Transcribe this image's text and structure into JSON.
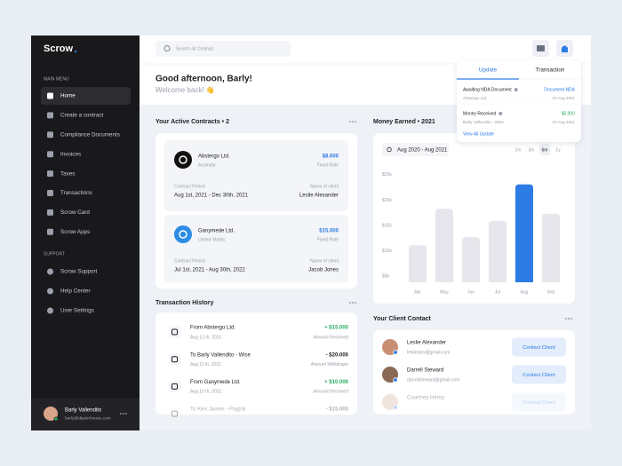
{
  "sidebar": {
    "brand": "Scrow",
    "main_menu_label": "MAIN MENU",
    "main_menu": [
      "Home",
      "Create a contract",
      "Compliance Documents",
      "Invoices",
      "Taxes",
      "Transactions",
      "Scrow Card",
      "Scrow Apps"
    ],
    "support_label": "SUPPORT",
    "support_menu": [
      "Scrow Support",
      "Help Center",
      "User Settings"
    ],
    "user": {
      "name": "Barly Vallendito",
      "email": "barly@dipainhouse.com"
    }
  },
  "header": {
    "search_placeholder": "Search all Contract",
    "greeting": "Good afternoon, Barly!",
    "subgreeting": "Welcome back! 👋"
  },
  "notifications": {
    "tabs": [
      "Update",
      "Transaction"
    ],
    "items": [
      {
        "title": "Awaiting NDA Document",
        "subtitle": "Abstergo Ltd.",
        "action": "Document NDA",
        "date": "10 Aug 2021"
      },
      {
        "title": "Money Received",
        "subtitle": "Barly Vallendito - Wise",
        "action": "$5.000",
        "date": "10 Aug 2021"
      }
    ],
    "view_all": "View All Update"
  },
  "contracts": {
    "title": "Your Active Contracts • 2",
    "items": [
      {
        "company": "Abstergo Ltd.",
        "location": "Australia",
        "amount": "$8.000",
        "rate": "Fixed Rate",
        "period_label": "Contract Period",
        "period": "Aug 1st, 2021 - Dec 30th, 2021",
        "client_label": "Name of client",
        "client": "Leslie Alexander"
      },
      {
        "company": "Ganymede Ltd.",
        "location": "United States",
        "amount": "$15.000",
        "rate": "Fixed Rate",
        "period_label": "Contract Period",
        "period": "Jul 1st, 2021 - Aug 30th, 2022",
        "client_label": "Name of client",
        "client": "Jacob Jones"
      }
    ]
  },
  "transactions": {
    "title": "Transaction History",
    "items": [
      {
        "name": "From Abstergo Ltd.",
        "date": "Aug 12 th, 2021",
        "amount": "+ $15.000",
        "status": "Amount Received"
      },
      {
        "name": "To Barly Vallendito - Wise",
        "date": "Aug 11 th, 2021",
        "amount": "- $20.000",
        "status": "Amount Withdrawn"
      },
      {
        "name": "From Ganymede Ltd.",
        "date": "Aug 10 th, 2021",
        "amount": "+ $10.000",
        "status": "Amount Received"
      },
      {
        "name": "To Alex James - Paypal",
        "amount": "- $15.000"
      }
    ]
  },
  "chart_controls": {
    "date_range": "Aug 2020 - Aug 2021",
    "ranges": [
      "1m",
      "3m",
      "6m",
      "1y"
    ]
  },
  "chart_data": {
    "type": "bar",
    "title": "Money Earned • 2021",
    "categories": [
      "Apr",
      "May",
      "Jun",
      "Jul",
      "Aug",
      "Sep"
    ],
    "values": [
      11.1,
      18.3,
      12.7,
      15.9,
      23.1,
      17.3
    ],
    "colors": [
      "#e6e6ec",
      "#e6e6ec",
      "#e6e6ec",
      "#e6e6ec",
      "#2d7be5",
      "#e6e6ec"
    ],
    "ylim": [
      3.8,
      26.2
    ],
    "yticks": [
      {
        "value": 5,
        "label": "$5k"
      },
      {
        "value": 10,
        "label": "$10k"
      },
      {
        "value": 15,
        "label": "$15k"
      },
      {
        "value": 20,
        "label": "$20k"
      },
      {
        "value": 25,
        "label": "$25k"
      }
    ],
    "grid": false
  },
  "contacts": {
    "title": "Your Client Contact",
    "items": [
      {
        "name": "Leslie Alexander",
        "email": "lesliealex@gmail.com",
        "button": "Contact Client"
      },
      {
        "name": "Darrell Steward",
        "email": "darrellsteward@gmail.com",
        "button": "Contact Client"
      },
      {
        "name": "Courtney Henry",
        "button": "Contact Client"
      }
    ]
  }
}
